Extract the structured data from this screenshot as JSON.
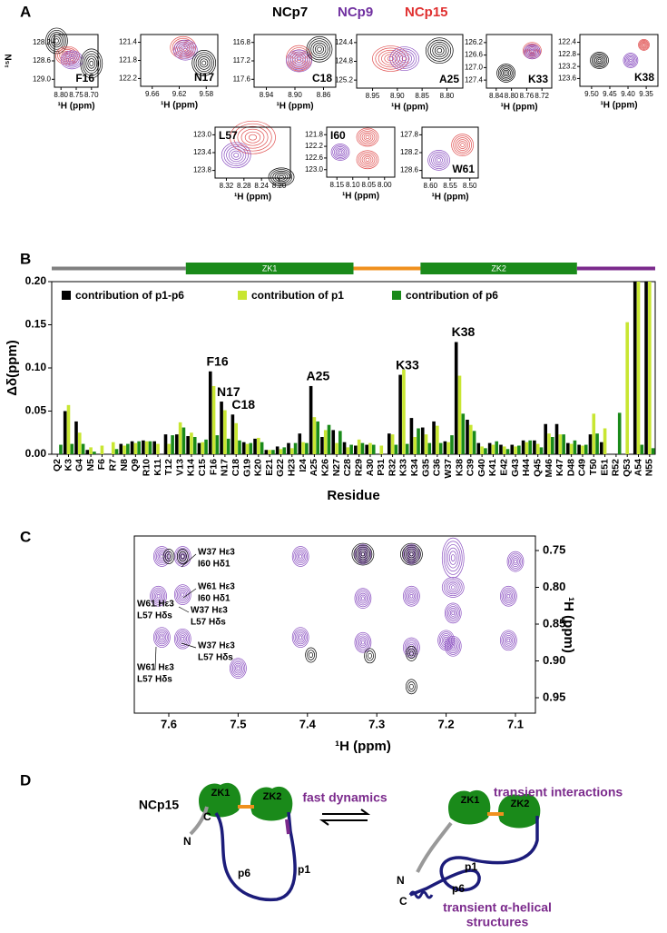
{
  "panel_labels": [
    "A",
    "B",
    "C",
    "D"
  ],
  "panel_a": {
    "legend": [
      "NCp7",
      "NCp9",
      "NCp15"
    ],
    "legend_colors": [
      "#000000",
      "#7030a0",
      "#e03030"
    ],
    "y_label": "¹⁵N",
    "x_label": "¹H  (ppm)",
    "spectra": [
      {
        "residue": "F16",
        "yticks": [
          "128.2",
          "128.6",
          "129.0"
        ],
        "xticks": [
          "8.80",
          "8.75",
          "8.70"
        ]
      },
      {
        "residue": "N17",
        "yticks": [
          "121.4",
          "121.8",
          "122.2"
        ],
        "xticks": [
          "9.66",
          "9.62",
          "9.58"
        ]
      },
      {
        "residue": "C18",
        "yticks": [
          "116.8",
          "117.2",
          "117.6"
        ],
        "xticks": [
          "8.94",
          "8.90",
          "8.86"
        ]
      },
      {
        "residue": "A25",
        "yticks": [
          "124.4",
          "124.8",
          "125.2"
        ],
        "xticks": [
          "8.95",
          "8.90",
          "8.85",
          "8.80"
        ]
      },
      {
        "residue": "K33",
        "yticks": [
          "126.2",
          "126.6",
          "127.0",
          "127.4"
        ],
        "xticks": [
          "8.84",
          "8.80",
          "8.76",
          "8.72"
        ]
      },
      {
        "residue": "K38",
        "yticks": [
          "122.4",
          "122.8",
          "123.2",
          "123.6"
        ],
        "xticks": [
          "9.50",
          "9.45",
          "9.40",
          "9.35"
        ]
      },
      {
        "residue": "L57",
        "yticks": [
          "123.0",
          "123.4",
          "123.8"
        ],
        "xticks": [
          "8.32",
          "8.28",
          "8.24",
          "8.20"
        ]
      },
      {
        "residue": "I60",
        "yticks": [
          "121.8",
          "122.2",
          "122.6",
          "123.0"
        ],
        "xticks": [
          "8.15",
          "8.10",
          "8.05",
          "8.00"
        ]
      },
      {
        "residue": "W61",
        "yticks": [
          "127.8",
          "128.2",
          "128.6"
        ],
        "xticks": [
          "8.60",
          "8.55",
          "8.50"
        ]
      }
    ]
  },
  "chart_data": {
    "type": "bar",
    "y_label": "Δδ(ppm)",
    "x_label": "Residue",
    "categories": [
      "Q2",
      "K3",
      "G4",
      "N5",
      "F6",
      "R7",
      "N8",
      "Q9",
      "R10",
      "K11",
      "T12",
      "V13",
      "K14",
      "C15",
      "F16",
      "N17",
      "C18",
      "G19",
      "K20",
      "E21",
      "G22",
      "H23",
      "I24",
      "A25",
      "K26",
      "N27",
      "C28",
      "R29",
      "A30",
      "P31",
      "R32",
      "K33",
      "K34",
      "G35",
      "C36",
      "W37",
      "K38",
      "C39",
      "G40",
      "K41",
      "E42",
      "G43",
      "H44",
      "Q45",
      "M46",
      "K47",
      "D48",
      "C49",
      "T50",
      "E51",
      "R52",
      "Q53",
      "A54",
      "N55"
    ],
    "series": [
      {
        "name": "contribution of p1-p6",
        "color": "#000000",
        "values": [
          0,
          0.05,
          0.038,
          0.005,
          0,
          0,
          0.012,
          0.015,
          0.016,
          0.015,
          0.023,
          0.023,
          0.021,
          0.013,
          0.096,
          0.061,
          0.046,
          0.014,
          0.018,
          0.005,
          0.009,
          0.013,
          0.024,
          0.079,
          0.02,
          0.028,
          0.014,
          0.01,
          0.011,
          0,
          0.024,
          0.092,
          0.042,
          0.031,
          0.038,
          0.015,
          0.13,
          0.04,
          0.013,
          0.013,
          0.011,
          0.011,
          0.016,
          0.016,
          0.035,
          0.035,
          0.013,
          0.011,
          0.023,
          0.014,
          0,
          0,
          0.2,
          0.2
        ]
      },
      {
        "name": "contribution of p1",
        "color": "#c8e632",
        "values": [
          0,
          0.057,
          0.025,
          0.008,
          0.01,
          0.014,
          0.01,
          0.013,
          0.015,
          0.012,
          0.012,
          0.037,
          0.025,
          0.014,
          0.079,
          0.051,
          0.036,
          0.012,
          0.019,
          0.005,
          0.006,
          0.007,
          0.014,
          0.043,
          0.028,
          0.013,
          0.008,
          0.017,
          0.013,
          0.01,
          0.023,
          0.098,
          0.02,
          0.023,
          0.033,
          0.014,
          0.091,
          0.034,
          0.009,
          0.011,
          0.009,
          0.009,
          0.014,
          0.012,
          0.024,
          0.023,
          0.012,
          0.01,
          0.047,
          0.03,
          0,
          0.153,
          0.2,
          0.2
        ]
      },
      {
        "name": "contribution of p6",
        "color": "#1a8a1a",
        "values": [
          0.011,
          0.012,
          0.012,
          0.003,
          0,
          0.006,
          0.012,
          0.015,
          0.015,
          0,
          0.022,
          0.031,
          0.02,
          0.017,
          0.022,
          0.018,
          0.016,
          0.013,
          0.014,
          0.005,
          0.008,
          0.013,
          0.013,
          0.038,
          0.034,
          0.027,
          0.011,
          0.013,
          0.011,
          0,
          0.011,
          0.012,
          0.03,
          0.013,
          0.013,
          0.022,
          0.047,
          0.027,
          0.007,
          0.015,
          0.006,
          0.01,
          0.016,
          0.008,
          0.02,
          0.023,
          0.016,
          0.011,
          0.024,
          0,
          0.048,
          0,
          0.011,
          0.007
        ]
      }
    ],
    "ylim": [
      0,
      0.2
    ],
    "yticks": [
      {
        "value": 0,
        "label": "0.00"
      },
      {
        "value": 0.05,
        "label": "0.05"
      },
      {
        "value": 0.1,
        "label": "0.10"
      },
      {
        "value": 0.15,
        "label": "0.15"
      },
      {
        "value": 0.2,
        "label": "0.20"
      }
    ],
    "annotations": [
      "F16",
      "N17",
      "C18",
      "A25",
      "K33",
      "K38"
    ],
    "domain_bar": [
      {
        "from": "Q2",
        "to": "V13",
        "color": "#808080"
      },
      {
        "from": "K14",
        "to": "C28",
        "color": "#1a8a1a",
        "label": "ZK1"
      },
      {
        "from": "R29",
        "to": "K34",
        "color": "#f0901e"
      },
      {
        "from": "G35",
        "to": "D48",
        "color": "#1a8a1a",
        "label": "ZK2"
      },
      {
        "from": "C49",
        "to": "N55",
        "color": "#7b2a8c"
      }
    ]
  },
  "panel_c": {
    "x_label": "¹H  (ppm)",
    "y_label": "¹H  (ppm)",
    "xticks": [
      "7.6",
      "7.5",
      "7.4",
      "7.3",
      "7.2",
      "7.1"
    ],
    "yticks": [
      "0.75",
      "0.80",
      "0.85",
      "0.90",
      "0.95"
    ],
    "annotations": [
      [
        "W37 Hε3",
        "I60 Hδ1"
      ],
      [
        "W61 Hε3",
        "I60 Hδ1"
      ],
      [
        "W37 Hε3",
        "L57 Hδs"
      ],
      [
        "W61 Hε3",
        "L57 Hδs"
      ],
      [
        "W37 Hε3",
        "L57 Hδs"
      ],
      [
        "W61 Hε3",
        "L57 Hδs"
      ]
    ]
  },
  "panel_d": {
    "left": {
      "name": "NCp15",
      "zk1": "ZK1",
      "zk2": "ZK2",
      "n": "N",
      "c": "C",
      "p6": "p6",
      "p1": "p1"
    },
    "arrow_label": "fast dynamics",
    "right": {
      "title": "transient interactions",
      "zk1": "ZK1",
      "zk2": "ZK2",
      "n": "N",
      "c": "C",
      "p1": "p1",
      "p6": "p6",
      "helix": [
        "transient α-helical",
        "structures"
      ]
    }
  }
}
